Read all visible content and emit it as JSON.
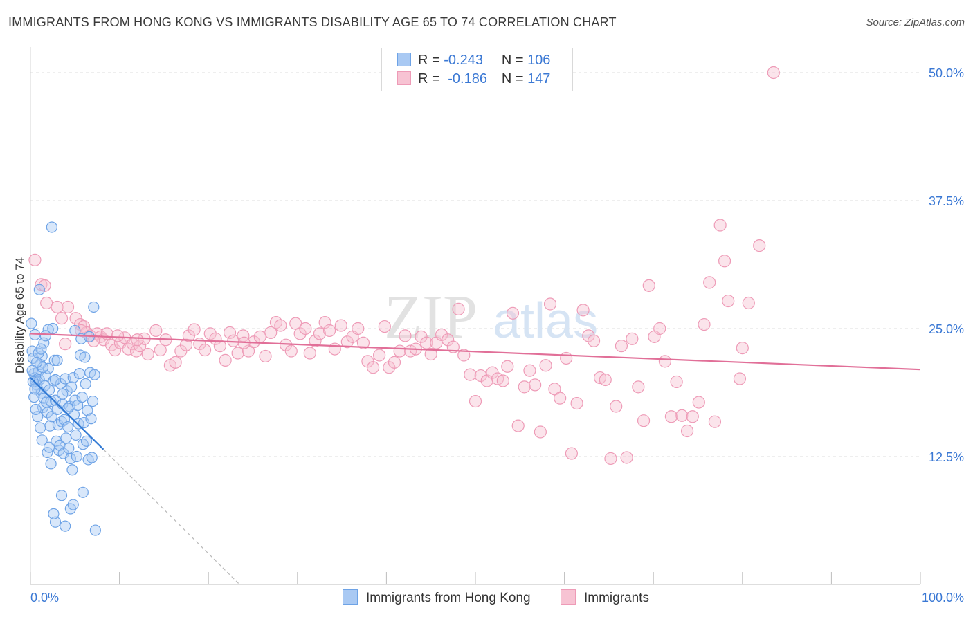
{
  "header": {
    "title": "IMMIGRANTS FROM HONG KONG VS IMMIGRANTS DISABILITY AGE 65 TO 74 CORRELATION CHART",
    "source": "Source: ZipAtlas.com"
  },
  "legend": {
    "r_label": "R =",
    "n_label": "N =",
    "rows": [
      {
        "r": "-0.243",
        "n": "106",
        "color": "#7fb0ee"
      },
      {
        "r": "-0.186",
        "n": "147",
        "color": "#f2a0bb"
      }
    ]
  },
  "bottom_legend": [
    {
      "label": "Immigrants from Hong Kong",
      "color": "#7fb0ee"
    },
    {
      "label": "Immigrants",
      "color": "#f2a0bb"
    }
  ],
  "watermark": {
    "zip": "ZIP",
    "atlas": "atlas"
  },
  "colors": {
    "blue_fill": "#a9c9f3",
    "blue_stroke": "#6ea3e6",
    "blue_line": "#2f78d3",
    "pink_fill": "#f7c3d3",
    "pink_stroke": "#ee9bb7",
    "pink_line": "#e16f98",
    "tick_text": "#3a78d4",
    "grid": "#dddddd"
  },
  "chart_data": {
    "type": "scatter",
    "title": "IMMIGRANTS FROM HONG KONG VS IMMIGRANTS DISABILITY AGE 65 TO 74 CORRELATION CHART",
    "xlabel": "",
    "ylabel": "Disability Age 65 to 74",
    "xlim": [
      0,
      100
    ],
    "ylim": [
      0,
      52.5
    ],
    "x_ticks": [
      "0.0%",
      "100.0%"
    ],
    "y_ticks": [
      {
        "value": 12.5,
        "label": "12.5%"
      },
      {
        "value": 25,
        "label": "25.0%"
      },
      {
        "value": 37.5,
        "label": "37.5%"
      },
      {
        "value": 50,
        "label": "50.0%"
      }
    ],
    "series": [
      {
        "name": "Immigrants from Hong Kong",
        "R": -0.243,
        "N": 106,
        "trend": {
          "x0": 0,
          "y0": 20.2,
          "x1": 8.2,
          "y1": 13.2,
          "dash_to_x": 23.5,
          "dash_to_y": 0
        },
        "points": [
          [
            0.1,
            25.5
          ],
          [
            0.2,
            22.8
          ],
          [
            0.3,
            22.1
          ],
          [
            0.4,
            20.6
          ],
          [
            0.5,
            20.2
          ],
          [
            0.6,
            19.8
          ],
          [
            0.7,
            19.5
          ],
          [
            0.8,
            19.1
          ],
          [
            0.9,
            20.8
          ],
          [
            1.0,
            20.0
          ],
          [
            1.1,
            21.5
          ],
          [
            1.2,
            18.7
          ],
          [
            1.3,
            22.3
          ],
          [
            1.4,
            17.3
          ],
          [
            1.5,
            18.2
          ],
          [
            1.6,
            19.4
          ],
          [
            1.7,
            20.4
          ],
          [
            1.8,
            17.8
          ],
          [
            1.9,
            16.8
          ],
          [
            2.0,
            21.1
          ],
          [
            2.1,
            19.0
          ],
          [
            2.2,
            15.5
          ],
          [
            2.3,
            17.9
          ],
          [
            2.4,
            16.4
          ],
          [
            2.5,
            25.0
          ],
          [
            2.6,
            19.9
          ],
          [
            2.7,
            21.9
          ],
          [
            2.8,
            18.0
          ],
          [
            2.9,
            14.0
          ],
          [
            3.0,
            17.1
          ],
          [
            3.1,
            15.6
          ],
          [
            3.2,
            13.1
          ],
          [
            3.3,
            13.6
          ],
          [
            3.4,
            19.6
          ],
          [
            3.5,
            15.9
          ],
          [
            3.6,
            17.6
          ],
          [
            3.7,
            12.8
          ],
          [
            3.8,
            16.1
          ],
          [
            3.9,
            20.1
          ],
          [
            4.0,
            14.3
          ],
          [
            4.1,
            18.9
          ],
          [
            4.2,
            15.4
          ],
          [
            4.3,
            13.3
          ],
          [
            4.4,
            17.4
          ],
          [
            4.5,
            12.3
          ],
          [
            4.6,
            19.3
          ],
          [
            4.7,
            11.2
          ],
          [
            4.8,
            20.2
          ],
          [
            4.9,
            16.6
          ],
          [
            5.0,
            18.0
          ],
          [
            5.1,
            14.6
          ],
          [
            5.2,
            12.5
          ],
          [
            5.3,
            17.5
          ],
          [
            5.4,
            15.7
          ],
          [
            5.5,
            20.6
          ],
          [
            5.6,
            22.4
          ],
          [
            5.7,
            24.0
          ],
          [
            5.8,
            18.3
          ],
          [
            5.9,
            13.7
          ],
          [
            6.0,
            15.8
          ],
          [
            6.1,
            22.2
          ],
          [
            6.2,
            19.6
          ],
          [
            6.3,
            14.0
          ],
          [
            6.4,
            17.0
          ],
          [
            6.5,
            12.2
          ],
          [
            6.6,
            24.2
          ],
          [
            6.7,
            20.7
          ],
          [
            6.8,
            16.2
          ],
          [
            6.9,
            12.4
          ],
          [
            7.0,
            17.9
          ],
          [
            7.1,
            27.1
          ],
          [
            7.2,
            20.5
          ],
          [
            2.4,
            34.9
          ],
          [
            1.0,
            28.8
          ],
          [
            2.0,
            24.9
          ],
          [
            5.0,
            24.8
          ],
          [
            3.5,
            8.7
          ],
          [
            4.5,
            7.4
          ],
          [
            2.8,
            6.1
          ],
          [
            3.9,
            5.7
          ],
          [
            7.3,
            5.3
          ],
          [
            5.9,
            9.0
          ],
          [
            4.8,
            7.8
          ],
          [
            2.6,
            6.9
          ],
          [
            0.8,
            16.4
          ],
          [
            1.1,
            15.3
          ],
          [
            1.3,
            14.1
          ],
          [
            1.9,
            12.9
          ],
          [
            2.1,
            13.4
          ],
          [
            2.3,
            11.8
          ],
          [
            1.5,
            23.6
          ],
          [
            1.7,
            24.3
          ],
          [
            3.0,
            21.9
          ],
          [
            2.8,
            20.0
          ],
          [
            3.6,
            18.6
          ],
          [
            4.2,
            17.2
          ],
          [
            0.4,
            18.3
          ],
          [
            0.5,
            24.4
          ],
          [
            0.9,
            22.6
          ],
          [
            0.3,
            19.8
          ],
          [
            0.6,
            17.1
          ],
          [
            1.2,
            23.0
          ],
          [
            1.4,
            21.2
          ],
          [
            0.7,
            21.7
          ],
          [
            0.2,
            20.9
          ],
          [
            0.5,
            19.1
          ]
        ]
      },
      {
        "name": "Immigrants",
        "R": -0.186,
        "N": 147,
        "trend": {
          "x0": 0,
          "y0": 24.5,
          "x1": 100,
          "y1": 21.0
        },
        "points": [
          [
            0.5,
            31.7
          ],
          [
            1.2,
            29.3
          ],
          [
            1.6,
            29.2
          ],
          [
            1.8,
            27.5
          ],
          [
            3.0,
            27.1
          ],
          [
            4.2,
            27.1
          ],
          [
            3.5,
            26.0
          ],
          [
            5.1,
            26.0
          ],
          [
            5.6,
            25.4
          ],
          [
            6.0,
            25.2
          ],
          [
            6.3,
            24.6
          ],
          [
            6.7,
            24.3
          ],
          [
            7.5,
            24.5
          ],
          [
            7.9,
            24.2
          ],
          [
            8.2,
            23.9
          ],
          [
            8.6,
            24.5
          ],
          [
            9.1,
            23.4
          ],
          [
            9.5,
            22.9
          ],
          [
            10.1,
            23.6
          ],
          [
            10.6,
            24.1
          ],
          [
            11.0,
            23.0
          ],
          [
            11.5,
            23.5
          ],
          [
            11.9,
            22.8
          ],
          [
            12.3,
            23.3
          ],
          [
            12.8,
            24.0
          ],
          [
            13.2,
            22.5
          ],
          [
            14.1,
            24.8
          ],
          [
            14.6,
            22.9
          ],
          [
            15.2,
            23.9
          ],
          [
            15.7,
            21.4
          ],
          [
            16.3,
            21.7
          ],
          [
            16.9,
            22.8
          ],
          [
            17.5,
            23.4
          ],
          [
            17.8,
            24.3
          ],
          [
            18.4,
            24.9
          ],
          [
            19.0,
            23.5
          ],
          [
            19.6,
            22.9
          ],
          [
            20.2,
            24.5
          ],
          [
            20.8,
            24.0
          ],
          [
            21.3,
            23.3
          ],
          [
            21.9,
            21.9
          ],
          [
            22.4,
            24.6
          ],
          [
            22.8,
            23.8
          ],
          [
            23.3,
            22.6
          ],
          [
            23.9,
            24.3
          ],
          [
            24.5,
            22.8
          ],
          [
            25.1,
            23.7
          ],
          [
            25.8,
            24.2
          ],
          [
            26.4,
            22.3
          ],
          [
            27.0,
            24.6
          ],
          [
            27.6,
            25.6
          ],
          [
            28.1,
            25.3
          ],
          [
            28.7,
            23.4
          ],
          [
            29.3,
            22.8
          ],
          [
            29.8,
            25.5
          ],
          [
            30.3,
            24.5
          ],
          [
            30.9,
            25.0
          ],
          [
            31.4,
            22.6
          ],
          [
            32.0,
            23.8
          ],
          [
            32.5,
            24.5
          ],
          [
            33.1,
            25.6
          ],
          [
            33.6,
            24.8
          ],
          [
            34.2,
            23.0
          ],
          [
            34.9,
            25.3
          ],
          [
            35.6,
            23.7
          ],
          [
            36.2,
            24.2
          ],
          [
            36.8,
            25.0
          ],
          [
            37.4,
            23.6
          ],
          [
            37.9,
            21.8
          ],
          [
            38.5,
            21.2
          ],
          [
            39.2,
            22.4
          ],
          [
            39.8,
            25.2
          ],
          [
            40.3,
            21.2
          ],
          [
            40.9,
            21.7
          ],
          [
            41.5,
            22.8
          ],
          [
            42.1,
            24.3
          ],
          [
            42.7,
            22.8
          ],
          [
            43.3,
            23.0
          ],
          [
            43.9,
            24.2
          ],
          [
            44.5,
            23.6
          ],
          [
            45.0,
            22.5
          ],
          [
            45.6,
            23.6
          ],
          [
            46.2,
            24.4
          ],
          [
            46.9,
            23.9
          ],
          [
            47.5,
            23.2
          ],
          [
            48.1,
            26.9
          ],
          [
            48.7,
            22.4
          ],
          [
            49.4,
            20.5
          ],
          [
            50.0,
            17.9
          ],
          [
            50.6,
            20.4
          ],
          [
            51.3,
            19.9
          ],
          [
            51.9,
            20.7
          ],
          [
            52.5,
            20.1
          ],
          [
            53.1,
            19.9
          ],
          [
            53.6,
            21.3
          ],
          [
            54.2,
            26.5
          ],
          [
            54.8,
            15.5
          ],
          [
            55.5,
            19.3
          ],
          [
            56.1,
            20.9
          ],
          [
            56.7,
            19.5
          ],
          [
            57.3,
            14.9
          ],
          [
            57.9,
            21.4
          ],
          [
            58.4,
            27.4
          ],
          [
            58.9,
            19.1
          ],
          [
            59.5,
            18.2
          ],
          [
            60.2,
            22.1
          ],
          [
            60.8,
            12.8
          ],
          [
            61.4,
            17.7
          ],
          [
            62.1,
            26.8
          ],
          [
            62.7,
            24.3
          ],
          [
            63.3,
            23.8
          ],
          [
            64.0,
            20.2
          ],
          [
            64.6,
            20.0
          ],
          [
            65.2,
            12.3
          ],
          [
            65.8,
            17.4
          ],
          [
            66.4,
            23.3
          ],
          [
            67.0,
            12.4
          ],
          [
            67.6,
            24.0
          ],
          [
            68.3,
            19.3
          ],
          [
            68.9,
            16.0
          ],
          [
            69.5,
            29.2
          ],
          [
            70.1,
            24.2
          ],
          [
            70.7,
            25.0
          ],
          [
            71.3,
            21.8
          ],
          [
            72.0,
            16.4
          ],
          [
            72.6,
            19.8
          ],
          [
            73.2,
            16.5
          ],
          [
            73.8,
            15.0
          ],
          [
            74.4,
            16.4
          ],
          [
            75.1,
            17.8
          ],
          [
            75.7,
            25.4
          ],
          [
            76.3,
            29.5
          ],
          [
            76.9,
            15.9
          ],
          [
            77.5,
            35.1
          ],
          [
            78.0,
            31.6
          ],
          [
            78.4,
            27.7
          ],
          [
            79.7,
            20.1
          ],
          [
            80.0,
            23.1
          ],
          [
            80.7,
            27.5
          ],
          [
            81.9,
            33.1
          ],
          [
            83.5,
            50.0
          ],
          [
            3.9,
            23.5
          ],
          [
            5.7,
            24.8
          ],
          [
            7.1,
            23.8
          ],
          [
            9.8,
            24.3
          ],
          [
            12.0,
            23.9
          ],
          [
            24.0,
            23.6
          ]
        ]
      }
    ]
  }
}
